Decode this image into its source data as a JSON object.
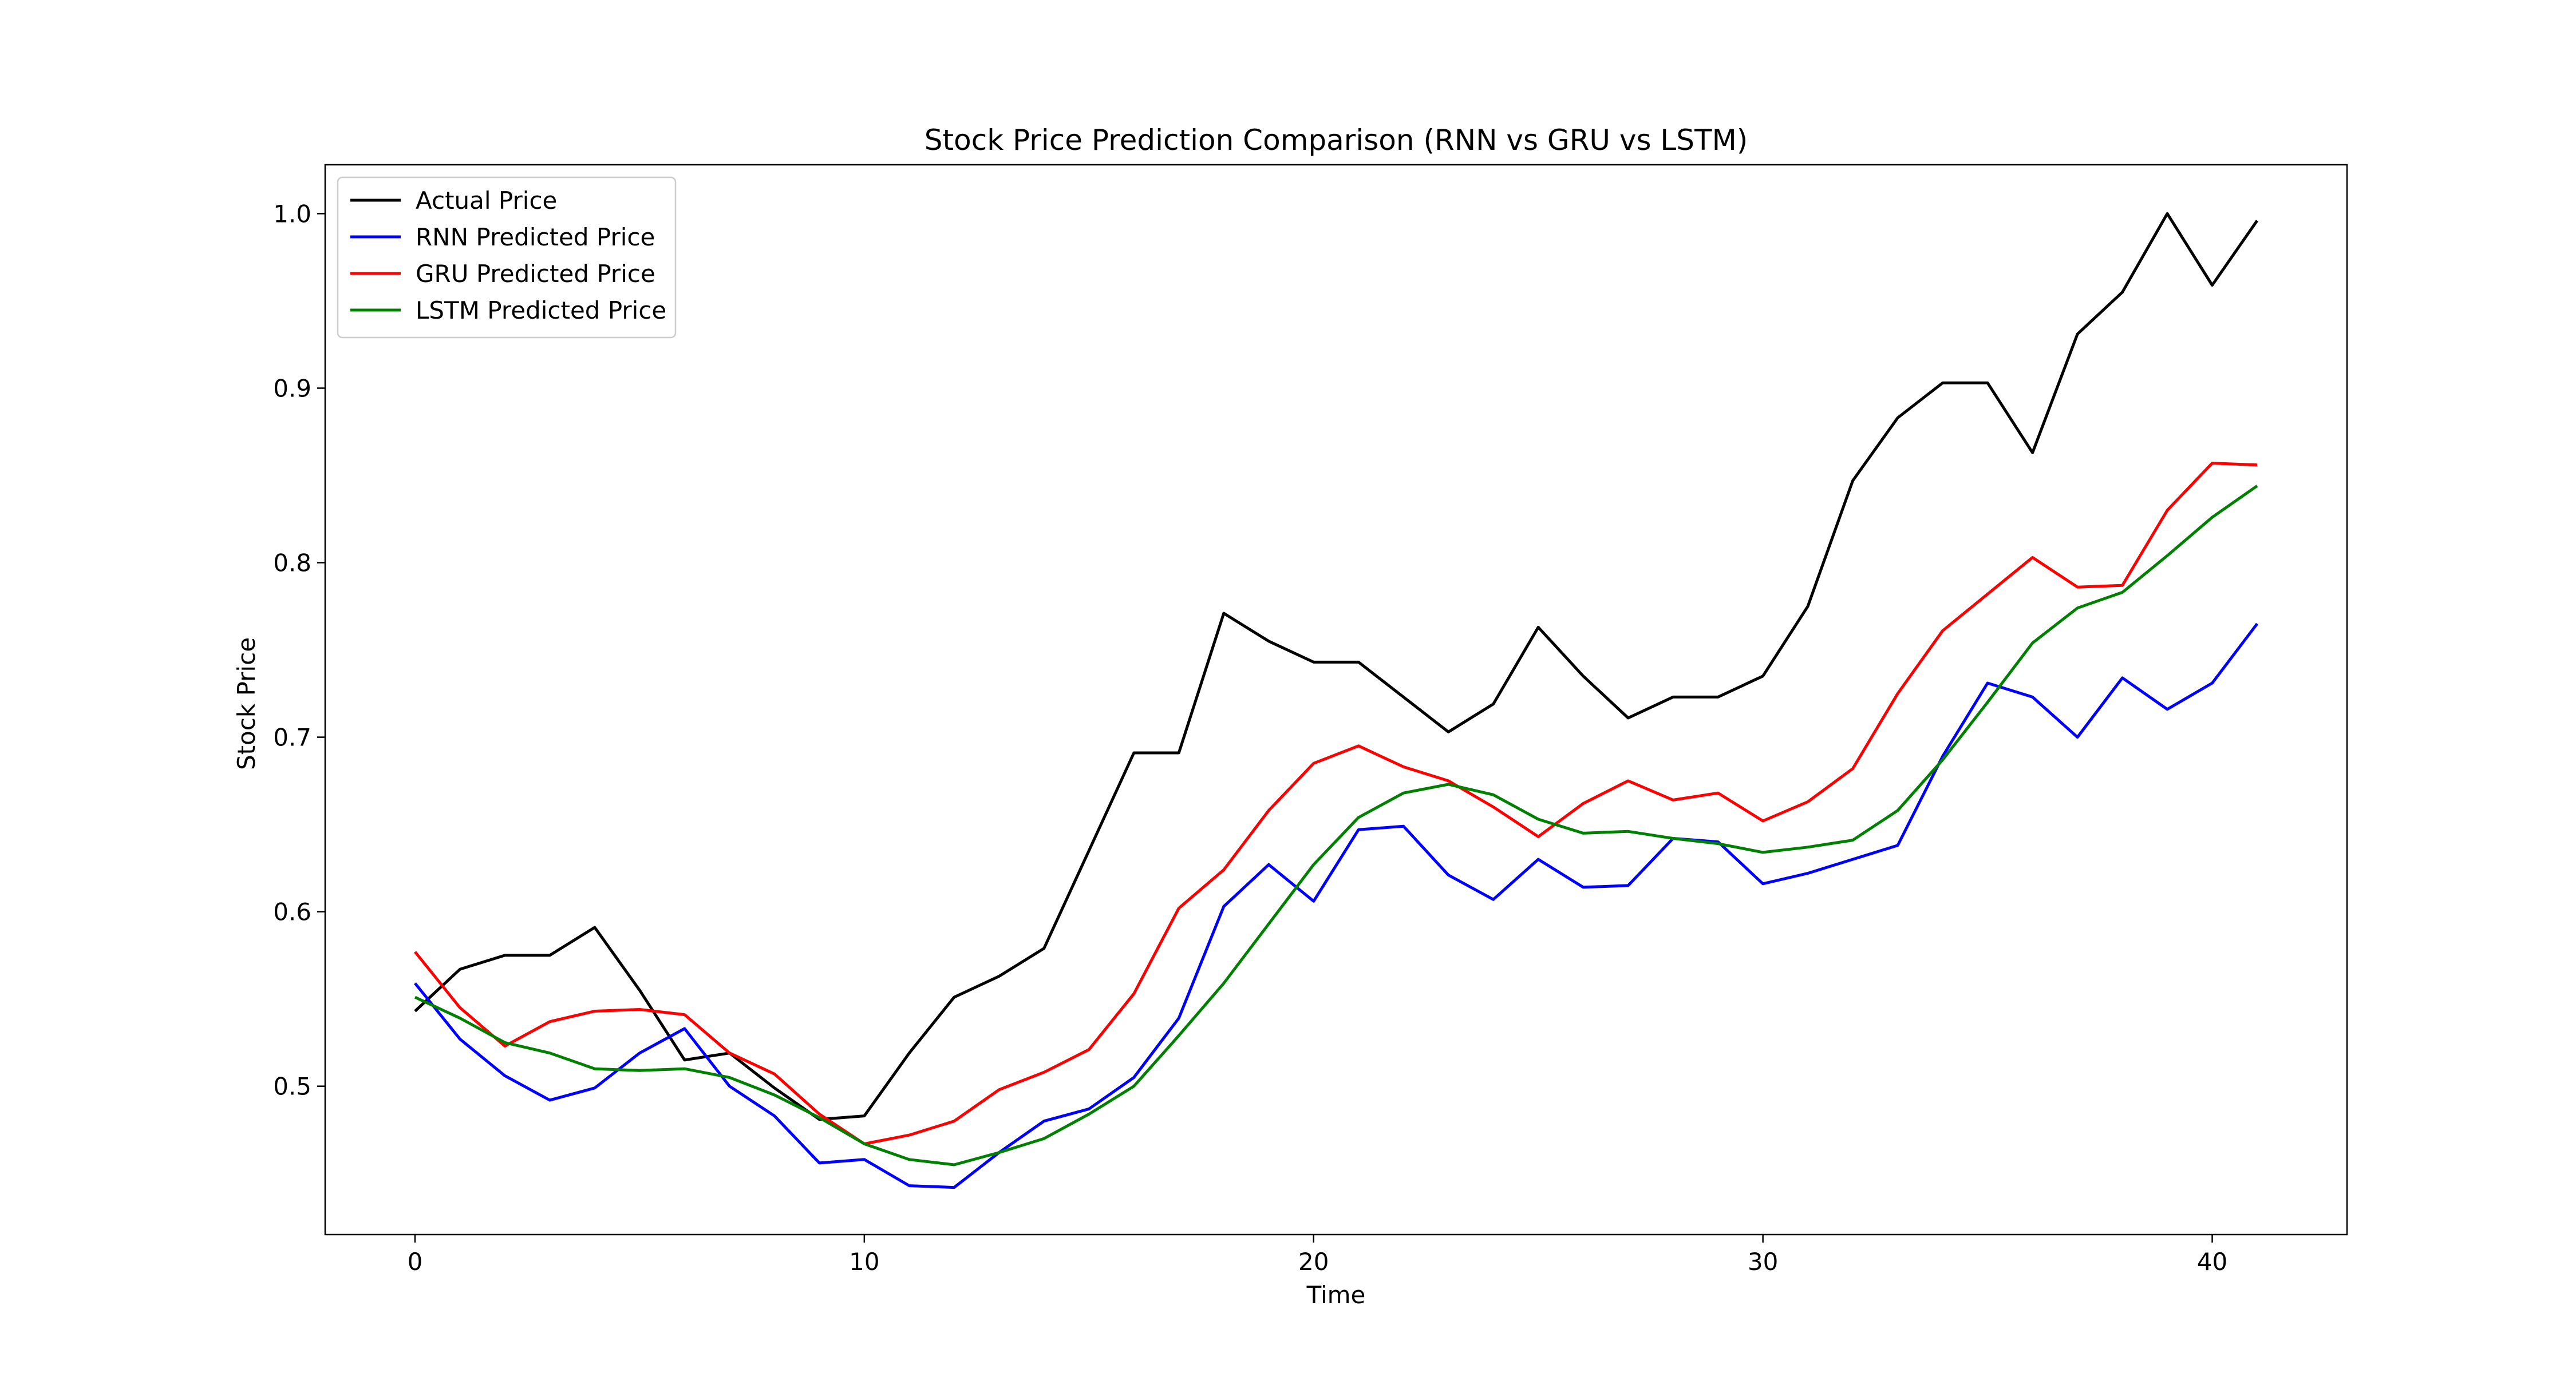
{
  "chart_data": {
    "type": "line",
    "title": "Stock Price Prediction Comparison (RNN vs GRU vs LSTM)",
    "xlabel": "Time",
    "ylabel": "Stock Price",
    "xlim": [
      -2,
      43
    ],
    "ylim": [
      0.415,
      1.028
    ],
    "x_ticks": [
      0,
      10,
      20,
      30,
      40
    ],
    "y_ticks": [
      0.5,
      0.6,
      0.7,
      0.8,
      0.9,
      1.0
    ],
    "y_tick_labels": [
      "0.5",
      "0.6",
      "0.7",
      "0.8",
      "0.9",
      "1.0"
    ],
    "grid": false,
    "legend": "upper-left",
    "x": [
      0,
      1,
      2,
      3,
      4,
      5,
      6,
      7,
      8,
      9,
      10,
      11,
      12,
      13,
      14,
      15,
      16,
      17,
      18,
      19,
      20,
      21,
      22,
      23,
      24,
      25,
      26,
      27,
      28,
      29,
      30,
      31,
      32,
      33,
      34,
      35,
      36,
      37,
      38,
      39,
      40,
      41
    ],
    "series": [
      {
        "name": "Actual Price",
        "color": "#000000",
        "values": [
          0.543,
          0.567,
          0.575,
          0.575,
          0.591,
          0.555,
          0.515,
          0.519,
          0.499,
          0.481,
          0.483,
          0.519,
          0.551,
          0.563,
          0.579,
          0.635,
          0.691,
          0.691,
          0.771,
          0.755,
          0.743,
          0.743,
          0.723,
          0.703,
          0.719,
          0.763,
          0.735,
          0.711,
          0.723,
          0.723,
          0.735,
          0.775,
          0.847,
          0.883,
          0.903,
          0.903,
          0.863,
          0.931,
          0.955,
          1.0,
          0.959,
          0.996
        ]
      },
      {
        "name": "RNN Predicted Price",
        "color": "#0000ff",
        "values": [
          0.559,
          0.527,
          0.506,
          0.492,
          0.499,
          0.519,
          0.533,
          0.5,
          0.483,
          0.456,
          0.458,
          0.443,
          0.442,
          0.462,
          0.48,
          0.487,
          0.505,
          0.539,
          0.603,
          0.627,
          0.606,
          0.647,
          0.649,
          0.621,
          0.607,
          0.63,
          0.614,
          0.615,
          0.642,
          0.64,
          0.616,
          0.622,
          0.63,
          0.638,
          0.689,
          0.731,
          0.723,
          0.7,
          0.734,
          0.716,
          0.731,
          0.765
        ]
      },
      {
        "name": "GRU Predicted Price",
        "color": "#ff0000",
        "values": [
          0.577,
          0.545,
          0.523,
          0.537,
          0.543,
          0.544,
          0.541,
          0.519,
          0.507,
          0.484,
          0.467,
          0.472,
          0.48,
          0.498,
          0.508,
          0.521,
          0.553,
          0.602,
          0.624,
          0.658,
          0.685,
          0.695,
          0.683,
          0.675,
          0.66,
          0.643,
          0.662,
          0.675,
          0.664,
          0.668,
          0.652,
          0.663,
          0.682,
          0.725,
          0.761,
          0.782,
          0.803,
          0.786,
          0.787,
          0.83,
          0.857,
          0.856
        ]
      },
      {
        "name": "LSTM Predicted Price",
        "color": "#008000",
        "values": [
          0.551,
          0.539,
          0.525,
          0.519,
          0.51,
          0.509,
          0.51,
          0.505,
          0.495,
          0.482,
          0.467,
          0.458,
          0.455,
          0.462,
          0.47,
          0.484,
          0.5,
          0.529,
          0.559,
          0.593,
          0.627,
          0.654,
          0.668,
          0.673,
          0.667,
          0.653,
          0.645,
          0.646,
          0.642,
          0.639,
          0.634,
          0.637,
          0.641,
          0.658,
          0.687,
          0.72,
          0.754,
          0.774,
          0.783,
          0.804,
          0.826,
          0.844
        ]
      }
    ]
  }
}
